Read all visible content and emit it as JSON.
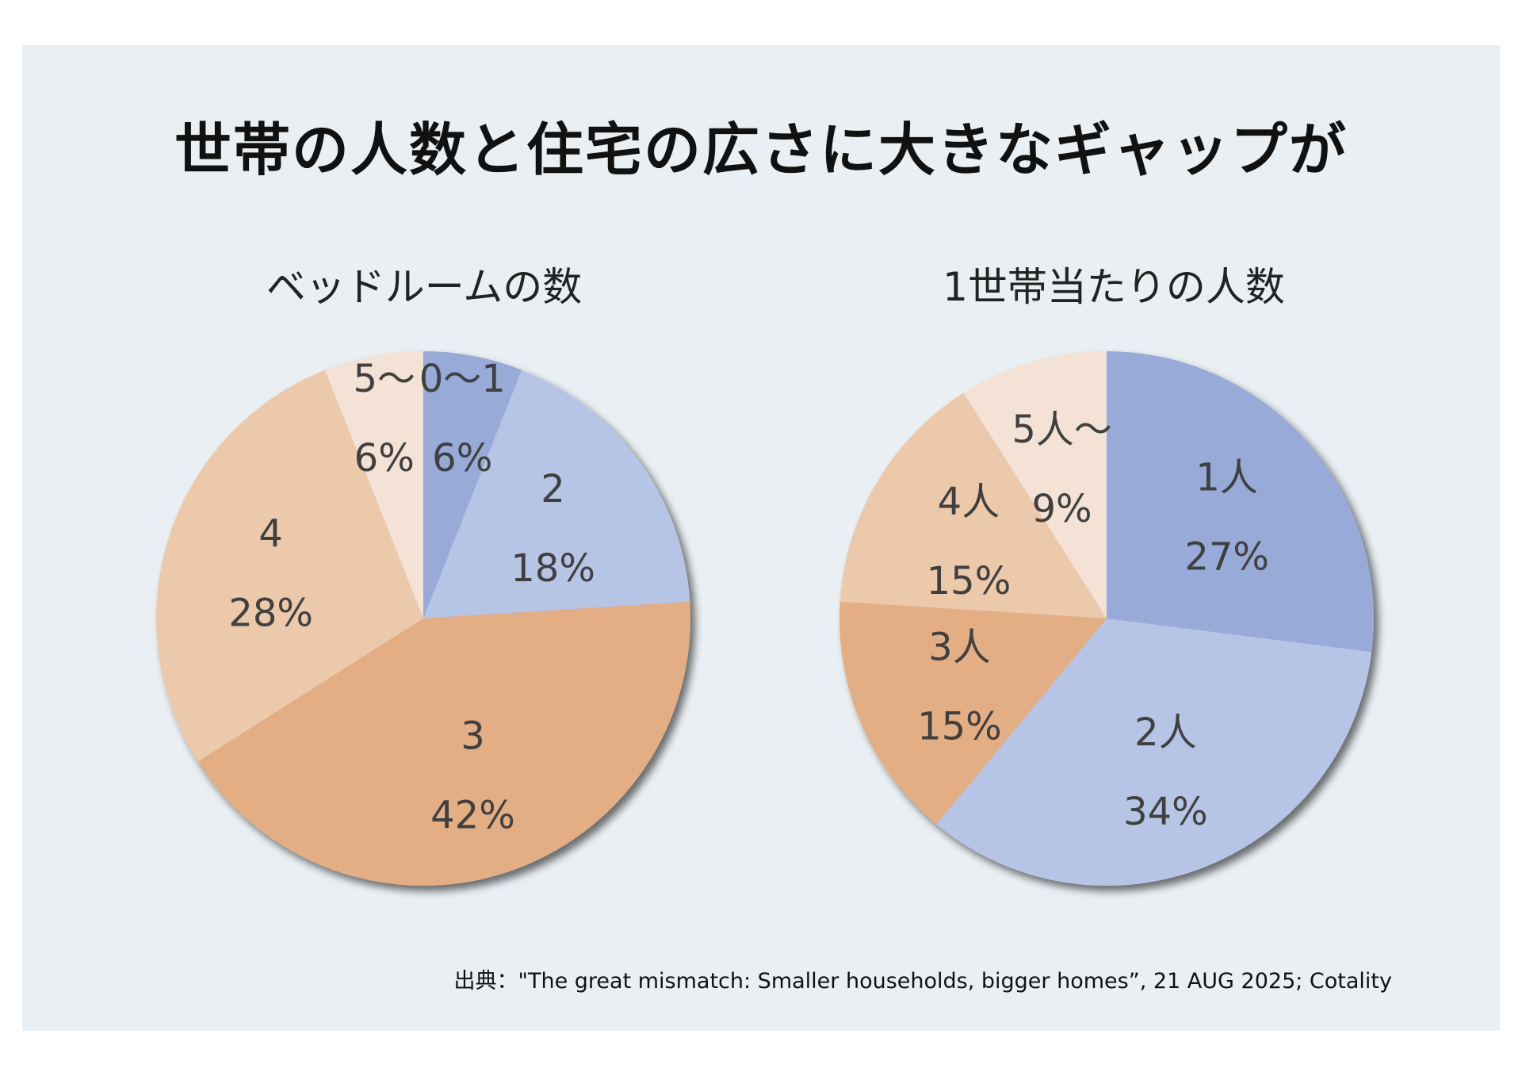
{
  "title": "世帯の人数と住宅の広さに大きなギャップが",
  "source": "出典：\"The great mismatch: Smaller households, bigger homes”, 21 AUG 2025; Cotality",
  "chart_data": [
    {
      "type": "pie",
      "title": "ベッドルームの数",
      "slices": [
        {
          "label": "0〜1",
          "value": 6,
          "value_label": "6%",
          "color": "#97aad8"
        },
        {
          "label": "2",
          "value": 18,
          "value_label": "18%",
          "color": "#b6c5e6"
        },
        {
          "label": "3",
          "value": 42,
          "value_label": "42%",
          "color": "#e3ae83"
        },
        {
          "label": "4",
          "value": 28,
          "value_label": "28%",
          "color": "#edc9ab"
        },
        {
          "label": "5〜",
          "value": 6,
          "value_label": "6%",
          "color": "#f4e2d6"
        }
      ]
    },
    {
      "type": "pie",
      "title": "1世帯当たりの人数",
      "slices": [
        {
          "label": "1人",
          "value": 27,
          "value_label": "27%",
          "color": "#97aad8"
        },
        {
          "label": "2人",
          "value": 34,
          "value_label": "34%",
          "color": "#b6c5e6"
        },
        {
          "label": "3人",
          "value": 15,
          "value_label": "15%",
          "color": "#e3ae83"
        },
        {
          "label": "4人",
          "value": 15,
          "value_label": "15%",
          "color": "#edc9ab"
        },
        {
          "label": "5人〜",
          "value": 9,
          "value_label": "9%",
          "color": "#f4e2d6"
        }
      ]
    }
  ]
}
